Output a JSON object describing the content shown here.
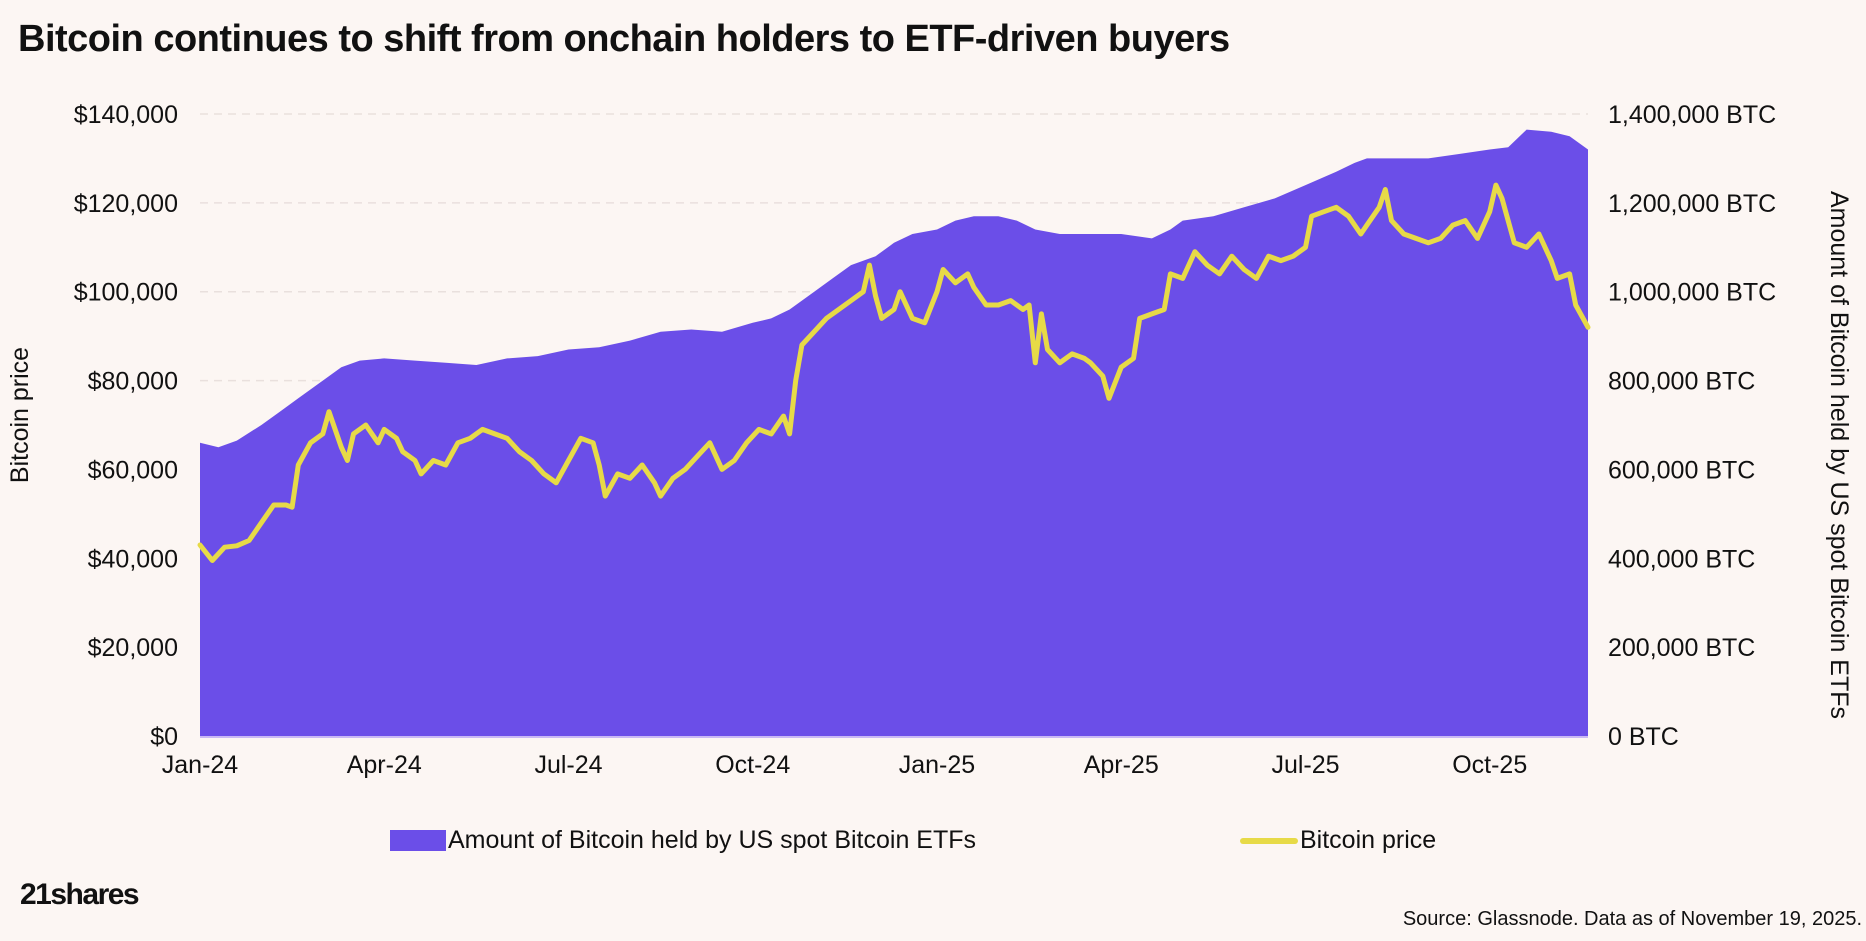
{
  "title": "Bitcoin continues to shift from onchain holders to ETF-driven buyers",
  "colors": {
    "area": "#6B4EE8",
    "line": "#E7DA47",
    "background": "#FCF6F3",
    "grid": "#E9E0DD"
  },
  "chart_data": {
    "type": "area+line",
    "title": "Bitcoin continues to shift from onchain holders to ETF-driven buyers",
    "x_ticks": [
      "Jan-24",
      "Apr-24",
      "Jul-24",
      "Oct-24",
      "Jan-25",
      "Apr-25",
      "Jul-25",
      "Oct-25"
    ],
    "x_tick_months": [
      0,
      3,
      6,
      9,
      12,
      15,
      18,
      21
    ],
    "x_range_months": [
      0,
      22.6
    ],
    "y_left": {
      "label": "Bitcoin price",
      "range": [
        0,
        140000
      ],
      "ticks": [
        "$0",
        "$20,000",
        "$40,000",
        "$60,000",
        "$80,000",
        "$100,000",
        "$120,000",
        "$140,000"
      ]
    },
    "y_right": {
      "label": "Amount of Bitcoin  held by US spot Bitcoin ETFs",
      "range": [
        0,
        1400000
      ],
      "ticks": [
        "0 BTC",
        "200,000 BTC",
        "400,000 BTC",
        "600,000 BTC",
        "800,000 BTC",
        "1,000,000 BTC",
        "1,200,000 BTC",
        "1,400,000 BTC"
      ]
    },
    "series": [
      {
        "name": "Amount of Bitcoin held by US spot Bitcoin ETFs",
        "type": "area",
        "axis": "right",
        "points": [
          [
            0,
            660000
          ],
          [
            0.3,
            650000
          ],
          [
            0.6,
            665000
          ],
          [
            1.0,
            700000
          ],
          [
            1.3,
            730000
          ],
          [
            1.6,
            760000
          ],
          [
            2.0,
            800000
          ],
          [
            2.3,
            830000
          ],
          [
            2.6,
            845000
          ],
          [
            3.0,
            850000
          ],
          [
            3.5,
            845000
          ],
          [
            4.0,
            840000
          ],
          [
            4.5,
            835000
          ],
          [
            5.0,
            850000
          ],
          [
            5.5,
            855000
          ],
          [
            6.0,
            870000
          ],
          [
            6.5,
            875000
          ],
          [
            7.0,
            890000
          ],
          [
            7.5,
            910000
          ],
          [
            8.0,
            915000
          ],
          [
            8.5,
            910000
          ],
          [
            9.0,
            930000
          ],
          [
            9.3,
            940000
          ],
          [
            9.6,
            960000
          ],
          [
            10.0,
            1000000
          ],
          [
            10.3,
            1030000
          ],
          [
            10.6,
            1060000
          ],
          [
            11.0,
            1080000
          ],
          [
            11.3,
            1110000
          ],
          [
            11.6,
            1130000
          ],
          [
            12.0,
            1140000
          ],
          [
            12.3,
            1160000
          ],
          [
            12.6,
            1170000
          ],
          [
            13.0,
            1170000
          ],
          [
            13.3,
            1160000
          ],
          [
            13.6,
            1140000
          ],
          [
            14.0,
            1130000
          ],
          [
            14.5,
            1130000
          ],
          [
            15.0,
            1130000
          ],
          [
            15.5,
            1120000
          ],
          [
            15.8,
            1140000
          ],
          [
            16.0,
            1160000
          ],
          [
            16.5,
            1170000
          ],
          [
            17.0,
            1190000
          ],
          [
            17.5,
            1210000
          ],
          [
            18.0,
            1240000
          ],
          [
            18.5,
            1270000
          ],
          [
            18.8,
            1290000
          ],
          [
            19.0,
            1300000
          ],
          [
            19.5,
            1300000
          ],
          [
            20.0,
            1300000
          ],
          [
            20.5,
            1310000
          ],
          [
            21.0,
            1320000
          ],
          [
            21.3,
            1325000
          ],
          [
            21.6,
            1365000
          ],
          [
            22.0,
            1360000
          ],
          [
            22.3,
            1350000
          ],
          [
            22.6,
            1320000
          ]
        ]
      },
      {
        "name": "Bitcoin price",
        "type": "line",
        "axis": "left",
        "points": [
          [
            0,
            43000
          ],
          [
            0.2,
            39500
          ],
          [
            0.4,
            42500
          ],
          [
            0.6,
            42800
          ],
          [
            0.8,
            44000
          ],
          [
            1.0,
            48000
          ],
          [
            1.2,
            52000
          ],
          [
            1.4,
            52000
          ],
          [
            1.5,
            51500
          ],
          [
            1.6,
            61000
          ],
          [
            1.8,
            66000
          ],
          [
            2.0,
            68000
          ],
          [
            2.1,
            73000
          ],
          [
            2.3,
            65000
          ],
          [
            2.4,
            62000
          ],
          [
            2.5,
            68000
          ],
          [
            2.7,
            70000
          ],
          [
            2.9,
            66000
          ],
          [
            3.0,
            69000
          ],
          [
            3.2,
            67000
          ],
          [
            3.3,
            64000
          ],
          [
            3.5,
            62000
          ],
          [
            3.6,
            59000
          ],
          [
            3.8,
            62000
          ],
          [
            4.0,
            61000
          ],
          [
            4.2,
            66000
          ],
          [
            4.4,
            67000
          ],
          [
            4.6,
            69000
          ],
          [
            4.8,
            68000
          ],
          [
            5.0,
            67000
          ],
          [
            5.2,
            64000
          ],
          [
            5.4,
            62000
          ],
          [
            5.6,
            59000
          ],
          [
            5.8,
            57000
          ],
          [
            6.0,
            62000
          ],
          [
            6.2,
            67000
          ],
          [
            6.4,
            66000
          ],
          [
            6.5,
            61000
          ],
          [
            6.6,
            54000
          ],
          [
            6.8,
            59000
          ],
          [
            7.0,
            58000
          ],
          [
            7.2,
            61000
          ],
          [
            7.4,
            57000
          ],
          [
            7.5,
            54000
          ],
          [
            7.7,
            58000
          ],
          [
            7.9,
            60000
          ],
          [
            8.1,
            63000
          ],
          [
            8.3,
            66000
          ],
          [
            8.5,
            60000
          ],
          [
            8.7,
            62000
          ],
          [
            8.9,
            66000
          ],
          [
            9.1,
            69000
          ],
          [
            9.3,
            68000
          ],
          [
            9.5,
            72000
          ],
          [
            9.6,
            68000
          ],
          [
            9.7,
            80000
          ],
          [
            9.8,
            88000
          ],
          [
            10.0,
            91000
          ],
          [
            10.2,
            94000
          ],
          [
            10.4,
            96000
          ],
          [
            10.6,
            98000
          ],
          [
            10.8,
            100000
          ],
          [
            10.9,
            106000
          ],
          [
            11.0,
            99000
          ],
          [
            11.1,
            94000
          ],
          [
            11.3,
            96000
          ],
          [
            11.4,
            100000
          ],
          [
            11.6,
            94000
          ],
          [
            11.8,
            93000
          ],
          [
            12.0,
            100000
          ],
          [
            12.1,
            105000
          ],
          [
            12.3,
            102000
          ],
          [
            12.5,
            104000
          ],
          [
            12.6,
            101000
          ],
          [
            12.8,
            97000
          ],
          [
            13.0,
            97000
          ],
          [
            13.2,
            98000
          ],
          [
            13.4,
            96000
          ],
          [
            13.5,
            97000
          ],
          [
            13.6,
            84000
          ],
          [
            13.7,
            95000
          ],
          [
            13.8,
            87000
          ],
          [
            14.0,
            84000
          ],
          [
            14.2,
            86000
          ],
          [
            14.4,
            85000
          ],
          [
            14.5,
            84000
          ],
          [
            14.7,
            81000
          ],
          [
            14.8,
            76000
          ],
          [
            15.0,
            83000
          ],
          [
            15.2,
            85000
          ],
          [
            15.3,
            94000
          ],
          [
            15.5,
            95000
          ],
          [
            15.7,
            96000
          ],
          [
            15.8,
            104000
          ],
          [
            16.0,
            103000
          ],
          [
            16.2,
            109000
          ],
          [
            16.4,
            106000
          ],
          [
            16.6,
            104000
          ],
          [
            16.8,
            108000
          ],
          [
            17.0,
            105000
          ],
          [
            17.2,
            103000
          ],
          [
            17.4,
            108000
          ],
          [
            17.6,
            107000
          ],
          [
            17.8,
            108000
          ],
          [
            18.0,
            110000
          ],
          [
            18.1,
            117000
          ],
          [
            18.3,
            118000
          ],
          [
            18.5,
            119000
          ],
          [
            18.7,
            117000
          ],
          [
            18.9,
            113000
          ],
          [
            19.0,
            115000
          ],
          [
            19.2,
            119000
          ],
          [
            19.3,
            123000
          ],
          [
            19.4,
            116000
          ],
          [
            19.6,
            113000
          ],
          [
            19.8,
            112000
          ],
          [
            20.0,
            111000
          ],
          [
            20.2,
            112000
          ],
          [
            20.4,
            115000
          ],
          [
            20.6,
            116000
          ],
          [
            20.8,
            112000
          ],
          [
            21.0,
            118000
          ],
          [
            21.1,
            124000
          ],
          [
            21.2,
            121000
          ],
          [
            21.4,
            111000
          ],
          [
            21.6,
            110000
          ],
          [
            21.8,
            113000
          ],
          [
            22.0,
            107000
          ],
          [
            22.1,
            103000
          ],
          [
            22.3,
            104000
          ],
          [
            22.4,
            97000
          ],
          [
            22.6,
            92000
          ]
        ]
      }
    ],
    "legend": [
      "Amount of Bitcoin held by US spot Bitcoin ETFs",
      "Bitcoin price"
    ],
    "legend_position": "bottom",
    "grid": "horizontal-dashed"
  },
  "legend": {
    "area_label": "Amount of Bitcoin held by US spot Bitcoin ETFs",
    "line_label": "Bitcoin price"
  },
  "logo": "21shares",
  "source": "Source: Glassnode. Data as of November 19, 2025."
}
